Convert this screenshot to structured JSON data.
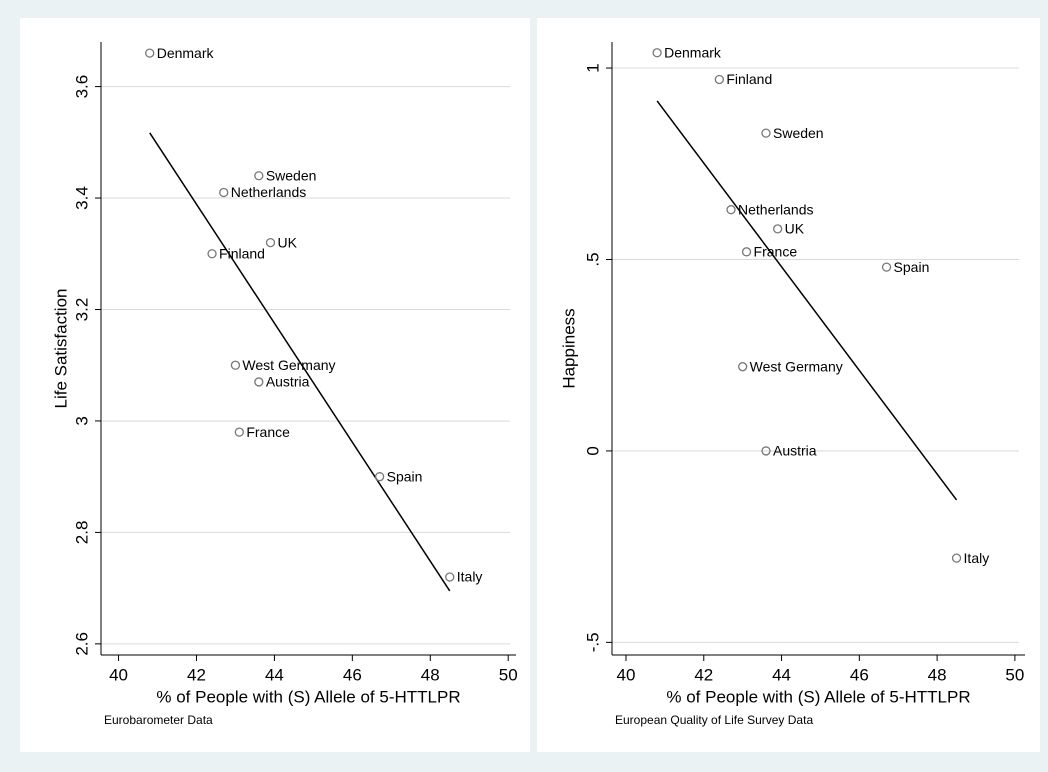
{
  "chart_data": [
    {
      "type": "scatter",
      "ylabel": "Life Satisfaction",
      "xlabel": "% of People with (S) Allele of 5-HTTLPR",
      "caption": "Eurobarometer Data",
      "point_labels": [
        "Denmark",
        "Sweden",
        "Netherlands",
        "UK",
        "Finland",
        "West Germany",
        "Austria",
        "France",
        "Spain",
        "Italy"
      ],
      "x": [
        40.8,
        43.6,
        42.7,
        43.9,
        42.4,
        43.0,
        43.6,
        43.1,
        46.7,
        48.5
      ],
      "values": [
        3.66,
        3.44,
        3.41,
        3.32,
        3.3,
        3.1,
        3.07,
        2.98,
        2.9,
        2.72
      ],
      "fit": {
        "x": [
          40.8,
          48.5
        ],
        "values": [
          3.517,
          2.695
        ]
      },
      "color": "#777777",
      "xlim": [
        39.55,
        50.2
      ],
      "ylim": [
        2.58,
        3.68
      ],
      "xticks": [
        40,
        42,
        44,
        46,
        48,
        50
      ],
      "yticks": [
        2.6,
        2.8,
        3,
        3.2,
        3.4,
        3.6
      ],
      "grid": true
    },
    {
      "type": "scatter",
      "ylabel": "Happiness",
      "xlabel": "% of People with (S) Allele of 5-HTTLPR",
      "caption": "European Quality of Life Survey Data",
      "point_labels": [
        "Denmark",
        "Finland",
        "Sweden",
        "Netherlands",
        "UK",
        "France",
        "Spain",
        "West Germany",
        "Austria",
        "Italy"
      ],
      "x": [
        40.8,
        42.4,
        43.6,
        42.7,
        43.9,
        43.1,
        46.7,
        43.0,
        43.6,
        48.5
      ],
      "values": [
        1.04,
        0.97,
        0.83,
        0.63,
        0.58,
        0.52,
        0.48,
        0.22,
        0.0,
        -0.28
      ],
      "fit": {
        "x": [
          40.8,
          48.5
        ],
        "values": [
          0.914,
          -0.128
        ]
      },
      "color": "#777777",
      "xlim": [
        39.64,
        50.26
      ],
      "ylim": [
        -0.533,
        1.068
      ],
      "xticks": [
        40,
        42,
        44,
        46,
        48,
        50
      ],
      "yticks": [
        {
          "value": -0.5,
          "label": "-.5"
        },
        0,
        {
          "value": 0.5,
          "label": ".5"
        },
        1
      ],
      "grid": true
    }
  ]
}
